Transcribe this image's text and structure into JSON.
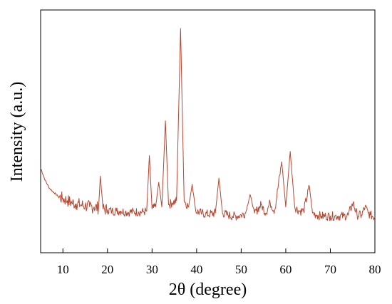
{
  "chart_data": {
    "type": "line",
    "title": "",
    "xlabel": "2θ (degree)",
    "ylabel": "Intensity (a.u.)",
    "xlim": [
      5,
      80
    ],
    "x_ticks": [
      10,
      20,
      30,
      40,
      50,
      60,
      70,
      80
    ],
    "x_tick_labels": [
      "10",
      "20",
      "30",
      "40",
      "50",
      "60",
      "70",
      "80"
    ],
    "y_ticks_shown": false,
    "ylim": [
      0,
      100
    ],
    "grid": false,
    "series": [
      {
        "color": "#b8462f",
        "x": [
          5,
          6,
          7,
          8,
          9,
          10,
          11,
          12,
          13,
          14,
          15,
          16,
          17,
          18,
          18.4,
          19,
          20,
          21,
          22,
          23,
          24,
          25,
          26,
          27,
          28,
          28.8,
          29.4,
          30,
          30.8,
          31.5,
          32.2,
          33.0,
          33.7,
          34.5,
          35.5,
          36.4,
          37.2,
          38.2,
          39.0,
          39.8,
          41,
          42,
          43,
          44.2,
          45.0,
          45.8,
          47,
          48,
          49,
          50,
          51,
          52.0,
          53,
          54.5,
          55.5,
          56.5,
          57.5,
          59.1,
          60.0,
          61.0,
          62.0,
          63,
          64,
          65.3,
          66,
          67,
          68,
          69,
          70,
          71,
          72,
          73,
          74,
          75.1,
          76,
          77,
          77.8,
          78.5,
          79,
          80
        ],
        "y": [
          32,
          26,
          22,
          20,
          18,
          17,
          16,
          15,
          14.5,
          14,
          13.5,
          13,
          13,
          12.5,
          28,
          12,
          11.5,
          11,
          11,
          11,
          10.5,
          10.5,
          10.5,
          10.5,
          10.5,
          11,
          38,
          12,
          13,
          25,
          13,
          55,
          14,
          15,
          16,
          100,
          16,
          13,
          24,
          11,
          10,
          9.5,
          9.5,
          10,
          27,
          10,
          9,
          8.5,
          8.5,
          9,
          10,
          19,
          10,
          14,
          10,
          15,
          11,
          35,
          13,
          40,
          13,
          11,
          11,
          23,
          10,
          9,
          8.5,
          8.5,
          8.5,
          8.5,
          8.5,
          8.5,
          9,
          15,
          9,
          9,
          13,
          10,
          9,
          8
        ]
      }
    ]
  }
}
